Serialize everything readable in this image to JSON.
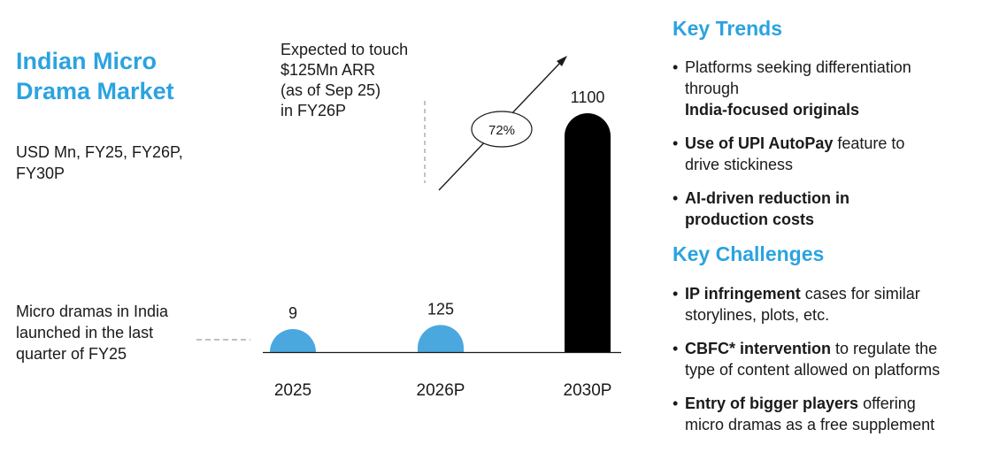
{
  "title": [
    "Indian Micro",
    "Drama Market"
  ],
  "units": [
    "USD Mn, FY25, FY26P,",
    "FY30P"
  ],
  "note": [
    "Micro dramas in India",
    "launched in the last",
    "quarter of FY25"
  ],
  "annotation": [
    "Expected to touch",
    "$125Mn ARR",
    "(as of Sep 25)",
    "in FY26P"
  ],
  "chart_data": {
    "type": "bar",
    "title": "Indian Micro Drama Market",
    "ylabel": "USD Mn",
    "categories": [
      "2025",
      "2026P",
      "2030P"
    ],
    "values": [
      9,
      125,
      1100
    ],
    "data_labels": [
      "9",
      "125",
      "1100"
    ],
    "colors": [
      "#4aa8df",
      "#4aa8df",
      "#000000"
    ],
    "growth_label": "72%",
    "ylim": [
      0,
      1100
    ]
  },
  "key_trends": {
    "heading": "Key Trends",
    "items": [
      [
        {
          "t": "Platforms seeking differentiation"
        },
        {
          "t": "through ",
          "b": false
        },
        {
          "t": "India-focused originals",
          "b": true
        }
      ],
      [
        {
          "t": "Use of UPI AutoPay",
          "b": true
        },
        {
          "t": " feature to"
        },
        {
          "t": "drive stickiness"
        }
      ],
      [
        {
          "t": "AI-driven reduction in",
          "b": true
        },
        {
          "t": "production costs",
          "b": true
        }
      ]
    ]
  },
  "key_challenges": {
    "heading": "Key Challenges",
    "items": [
      [
        {
          "t": "IP infringement",
          "b": true
        },
        {
          "t": " cases for similar"
        },
        {
          "t": "storylines, plots, etc."
        }
      ],
      [
        {
          "t": "CBFC* intervention",
          "b": true
        },
        {
          "t": " to regulate the"
        },
        {
          "t": "type of content allowed on platforms"
        }
      ],
      [
        {
          "t": "Entry of bigger players",
          "b": true
        },
        {
          "t": " offering"
        },
        {
          "t": "micro dramas as a free supplement"
        }
      ]
    ]
  }
}
